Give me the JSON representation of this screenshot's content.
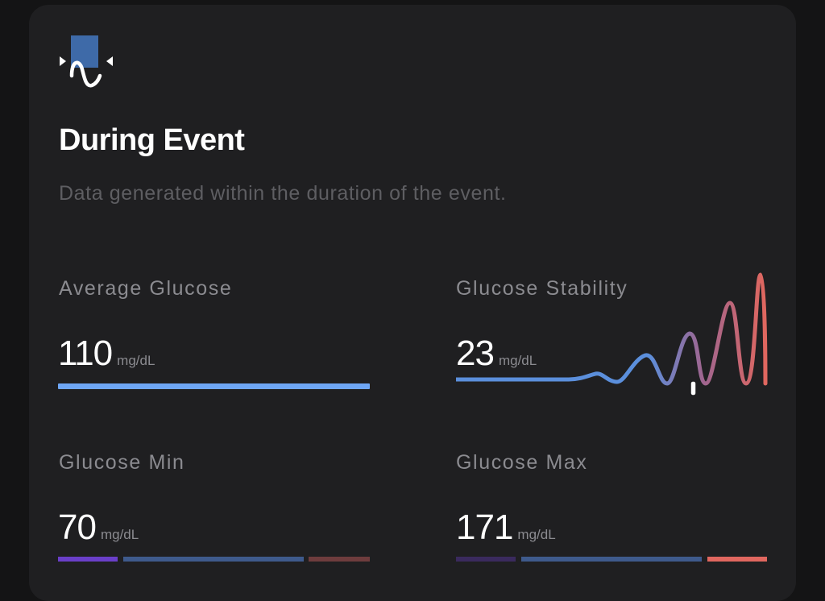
{
  "section": {
    "icon": "event-wave-icon",
    "title": "During Event",
    "subtitle": "Data generated within the duration of the event."
  },
  "metrics": {
    "average": {
      "label": "Average Glucose",
      "value": "110",
      "unit": "mg/dL"
    },
    "stability": {
      "label": "Glucose Stability",
      "value": "23",
      "unit": "mg/dL",
      "icon": "stability-wave-chart"
    },
    "min": {
      "label": "Glucose Min",
      "value": "70",
      "unit": "mg/dL"
    },
    "max": {
      "label": "Glucose Max",
      "value": "171",
      "unit": "mg/dL"
    }
  },
  "colors": {
    "background": "#141415",
    "card": "#1f1f21",
    "average_bar": "#6ea6f5",
    "low": "#6a3fc9",
    "in_range": "#3e5a8c",
    "high": "#e0675f",
    "low_dim": "#3a2a5e",
    "high_dim": "#6e3c3d"
  }
}
